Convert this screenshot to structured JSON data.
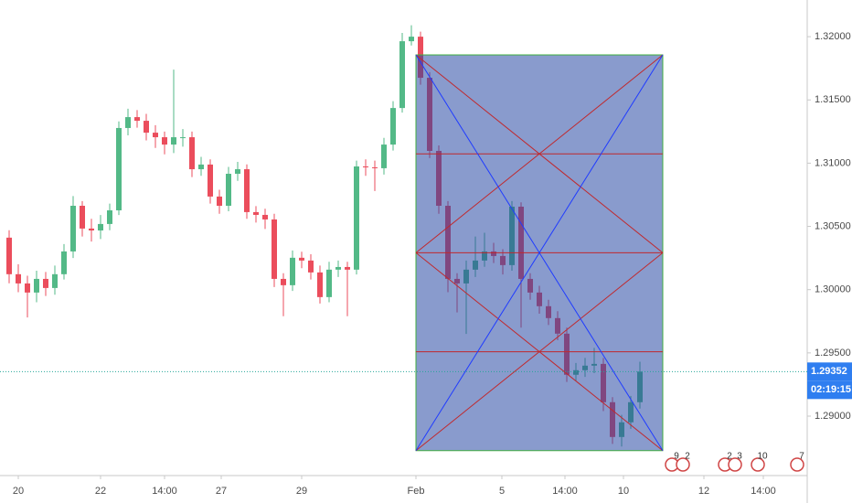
{
  "chart_data": {
    "type": "candlestick",
    "x": [
      1,
      2,
      3,
      4,
      5,
      6,
      7,
      8,
      9,
      10,
      11,
      12,
      13,
      14,
      15,
      16,
      17,
      18,
      19,
      20,
      21,
      22,
      23,
      24,
      25,
      26,
      27,
      28,
      29,
      30,
      31,
      32,
      33,
      34,
      35,
      36,
      37,
      38,
      39,
      40,
      41,
      42,
      43,
      44,
      45,
      46,
      47,
      48,
      49,
      50,
      51,
      52,
      53,
      54,
      55,
      56,
      57,
      58,
      59,
      60,
      61,
      62,
      63,
      64,
      65,
      66,
      67,
      68,
      69,
      70
    ],
    "open": [
      1.30411,
      1.30122,
      1.30049,
      1.29977,
      1.30085,
      1.30013,
      1.30122,
      1.30302,
      1.30663,
      1.30483,
      1.30468,
      1.30519,
      1.30627,
      1.31278,
      1.31364,
      1.31335,
      1.31241,
      1.31205,
      1.31147,
      1.31205,
      1.31205,
      1.30952,
      1.30989,
      1.30736,
      1.30663,
      1.30916,
      1.30952,
      1.30613,
      1.30591,
      1.30555,
      1.30085,
      1.30035,
      1.30252,
      1.3023,
      1.30136,
      1.29941,
      1.30158,
      1.30179,
      1.30158,
      1.30974,
      1.30967,
      1.3096,
      1.31147,
      1.31436,
      1.31964,
      1.32,
      1.31675,
      1.31097,
      1.30663,
      1.30085,
      1.30049,
      1.30158,
      1.3023,
      1.30302,
      1.30266,
      1.30194,
      1.30656,
      1.30085,
      1.29977,
      1.29869,
      1.29775,
      1.29652,
      1.29327,
      1.29363,
      1.29399,
      1.29413,
      1.2911,
      1.28835,
      1.28951,
      1.2911
    ],
    "high": [
      1.3047,
      1.302,
      1.3011,
      1.3015,
      1.3014,
      1.3019,
      1.3036,
      1.3074,
      1.307,
      1.3056,
      1.3059,
      1.3068,
      1.3133,
      1.3143,
      1.3142,
      1.3139,
      1.313,
      1.3125,
      1.3174,
      1.3127,
      1.3125,
      1.3105,
      1.3103,
      1.3079,
      1.3097,
      1.3101,
      1.3099,
      1.3066,
      1.3064,
      1.306,
      1.3013,
      1.3031,
      1.303,
      1.3028,
      1.3019,
      1.3022,
      1.3023,
      1.3022,
      1.3102,
      1.3103,
      1.3102,
      1.312,
      1.3149,
      1.3203,
      1.3209,
      1.3204,
      1.3172,
      1.3114,
      1.307,
      1.3013,
      1.3023,
      1.3042,
      1.3045,
      1.3037,
      1.3032,
      1.307,
      1.3069,
      1.3013,
      1.3003,
      1.2992,
      1.2983,
      1.297,
      1.2942,
      1.2946,
      1.2954,
      1.2946,
      1.2915,
      1.2901,
      1.2916,
      1.2943
    ],
    "low": [
      1.3005,
      1.2998,
      1.2978,
      1.299,
      1.2995,
      1.2996,
      1.3008,
      1.3025,
      1.3042,
      1.3038,
      1.304,
      1.3047,
      1.3059,
      1.3122,
      1.3128,
      1.3118,
      1.3112,
      1.3107,
      1.3108,
      1.3113,
      1.3089,
      1.309,
      1.3068,
      1.306,
      1.3062,
      1.3086,
      1.3056,
      1.3053,
      1.3048,
      1.3002,
      1.2979,
      1.2999,
      1.3017,
      1.3008,
      1.2989,
      1.299,
      1.301,
      1.2979,
      1.3012,
      1.309,
      1.3078,
      1.3091,
      1.311,
      1.314,
      1.3193,
      1.3162,
      1.3104,
      1.306,
      1.2998,
      1.2982,
      1.2965,
      1.301,
      1.3018,
      1.3021,
      1.3012,
      1.3015,
      1.297,
      1.2992,
      1.2981,
      1.2972,
      1.296,
      1.2927,
      1.2928,
      1.2931,
      1.2934,
      1.2904,
      1.2878,
      1.2876,
      1.289,
      1.2906
    ],
    "close": [
      1.30122,
      1.30049,
      1.29977,
      1.30085,
      1.30013,
      1.30122,
      1.30302,
      1.30663,
      1.30483,
      1.30468,
      1.30519,
      1.30627,
      1.31278,
      1.31364,
      1.31335,
      1.31241,
      1.31205,
      1.31147,
      1.31205,
      1.31205,
      1.30952,
      1.30989,
      1.30736,
      1.30663,
      1.30916,
      1.30952,
      1.30613,
      1.30591,
      1.30555,
      1.30085,
      1.30035,
      1.30252,
      1.3023,
      1.30136,
      1.29941,
      1.30158,
      1.30179,
      1.30158,
      1.30974,
      1.30967,
      1.3096,
      1.31147,
      1.31436,
      1.31964,
      1.32,
      1.31675,
      1.31097,
      1.30663,
      1.30085,
      1.30049,
      1.30158,
      1.3023,
      1.30302,
      1.30266,
      1.30194,
      1.30656,
      1.30085,
      1.29977,
      1.29869,
      1.29775,
      1.29652,
      1.29327,
      1.29363,
      1.29399,
      1.29413,
      1.2911,
      1.28835,
      1.28951,
      1.2911,
      1.29352
    ],
    "up_color": "#53b987",
    "down_color": "#eb4d5c",
    "xlim": [
      0,
      88
    ],
    "xticks": [
      {
        "value": 2,
        "label": "20"
      },
      {
        "value": 11,
        "label": "22"
      },
      {
        "value": 18,
        "label": "14:00"
      },
      {
        "value": 24.2,
        "label": "27"
      },
      {
        "value": 33,
        "label": "29"
      },
      {
        "value": 45.5,
        "label": "Feb"
      },
      {
        "value": 54.9,
        "label": "5"
      },
      {
        "value": 61.8,
        "label": "14:00"
      },
      {
        "value": 68.2,
        "label": "10"
      },
      {
        "value": 77,
        "label": "12"
      },
      {
        "value": 83.5,
        "label": "14:00"
      }
    ],
    "ylim": [
      1.2853,
      1.3229
    ],
    "yticks": [
      {
        "value": 1.29,
        "label": "1.29000"
      },
      {
        "value": 1.295,
        "label": "1.29500"
      },
      {
        "value": 1.3,
        "label": "1.30000"
      },
      {
        "value": 1.305,
        "label": "1.30500"
      },
      {
        "value": 1.31,
        "label": "1.31000"
      },
      {
        "value": 1.315,
        "label": "1.31500"
      },
      {
        "value": 1.32,
        "label": "1.32000"
      }
    ],
    "grid": false,
    "last_price": 1.29352,
    "countdown": "02:19:15",
    "gann_box": {
      "x": [
        45.5,
        72.5
      ],
      "y": [
        1.28727,
        1.31856
      ]
    },
    "event_labels": [
      "9",
      "2",
      "2",
      "3",
      "10",
      "7"
    ]
  }
}
